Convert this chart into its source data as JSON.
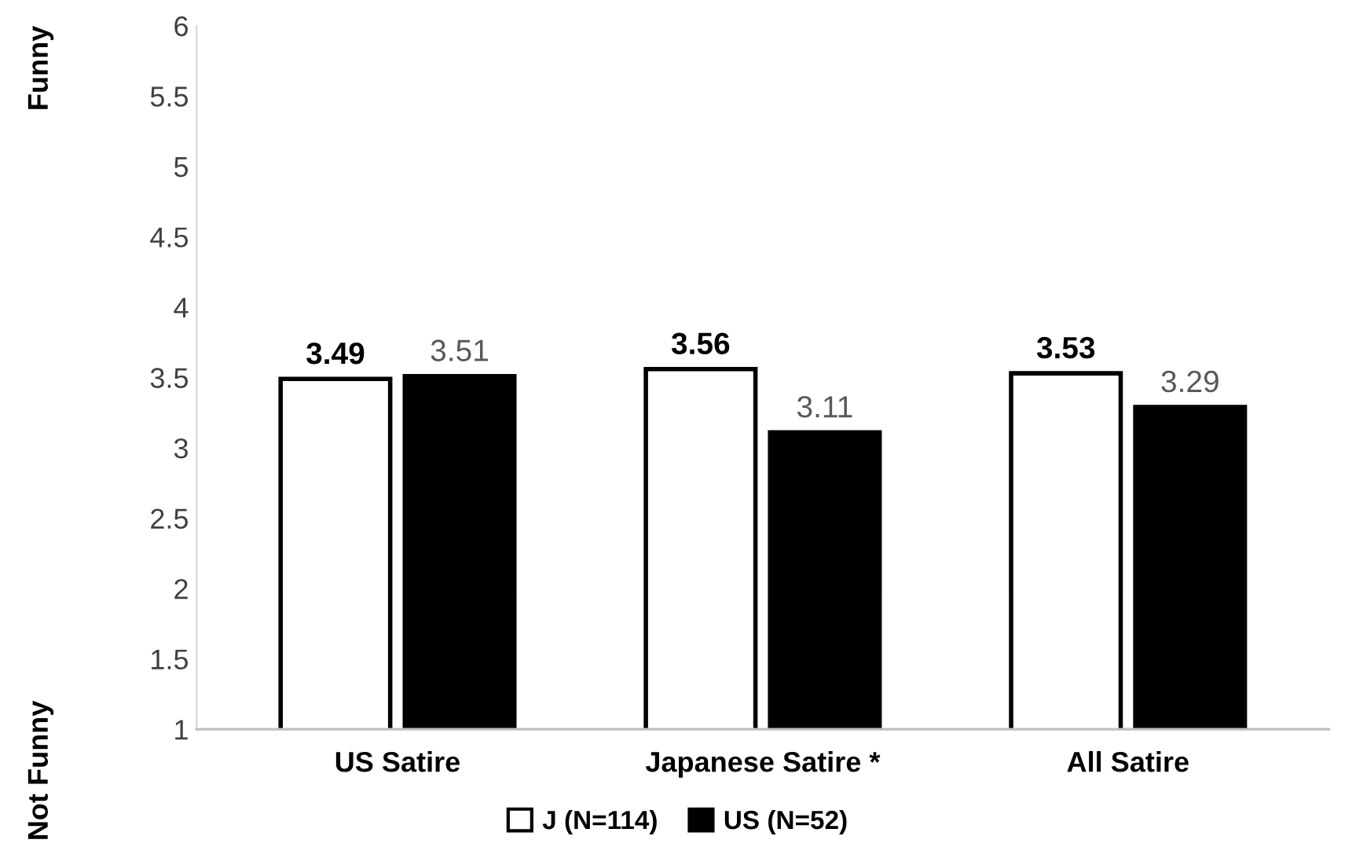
{
  "chart_data": {
    "type": "bar",
    "categories": [
      "US Satire",
      "Japanese Satire *",
      "All Satire"
    ],
    "series": [
      {
        "name": "J (N=114)",
        "color": "#ffffff",
        "values": [
          3.49,
          3.56,
          3.53
        ]
      },
      {
        "name": "US (N=52)",
        "color": "#000000",
        "values": [
          3.51,
          3.11,
          3.29
        ]
      }
    ],
    "ylim": [
      1,
      6
    ],
    "yticks": [
      1,
      1.5,
      2,
      2.5,
      3,
      3.5,
      4,
      4.5,
      5,
      5.5,
      6
    ],
    "data_labels": true,
    "legend": "bottom",
    "grid": false,
    "annotations": [
      "Funny",
      "Not Funny"
    ]
  }
}
